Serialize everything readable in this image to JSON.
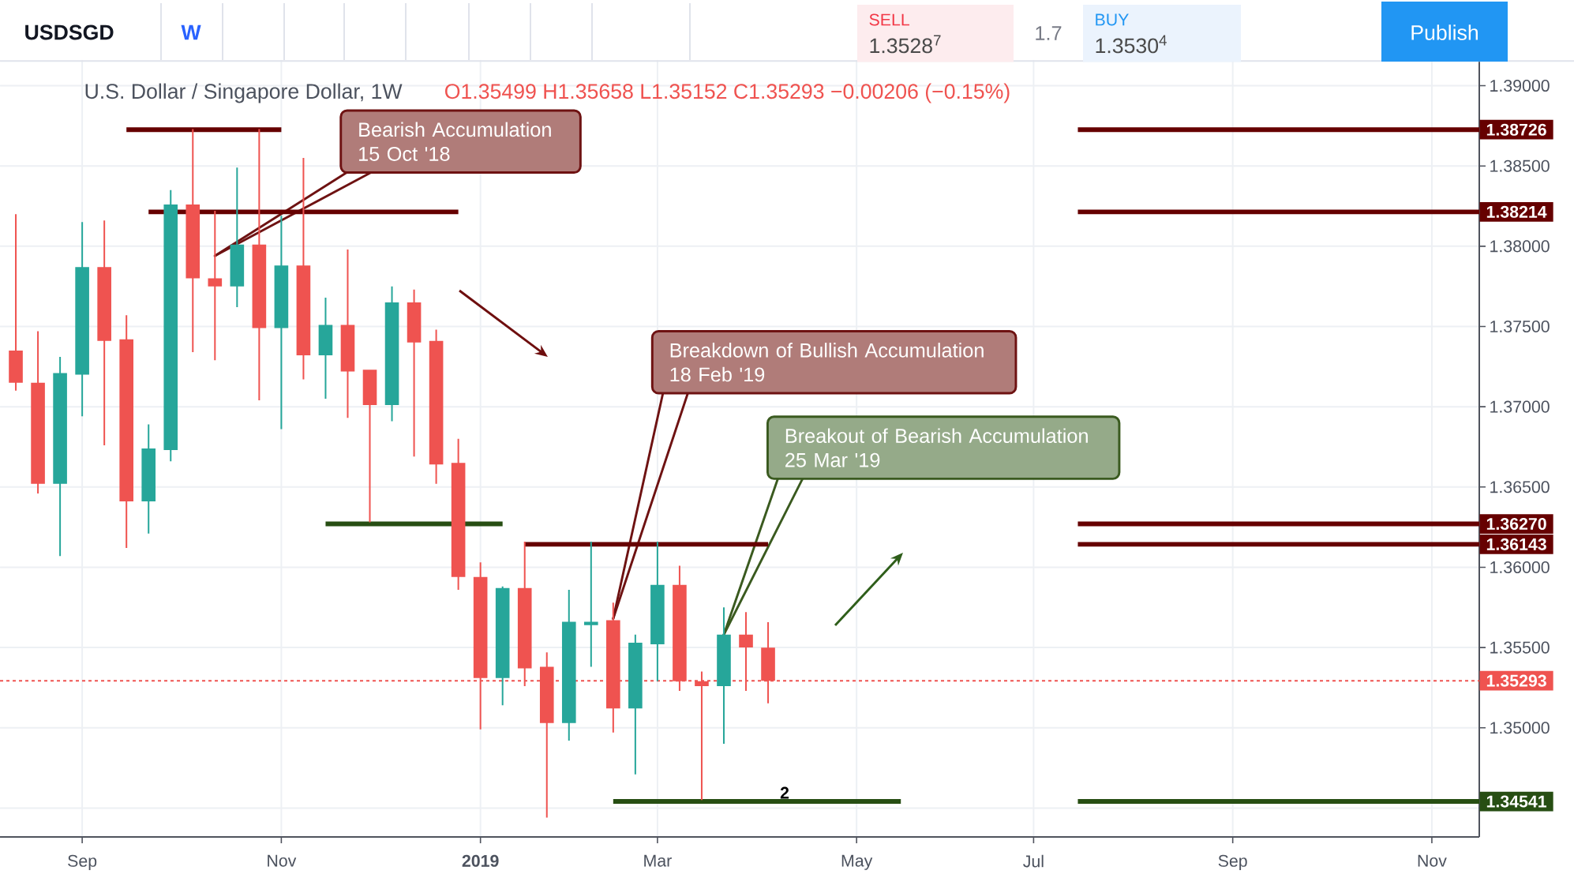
{
  "chart_data": {
    "type": "candlestick",
    "title": "U.S. Dollar / Singapore Dollar, 1W",
    "subtitle": "O1.35499 H1.35658 L1.35152 C1.35293 −0.00206 (−0.15%)",
    "x": [
      "2018-08-13",
      "2018-08-20",
      "2018-08-27",
      "2018-09-03",
      "2018-09-10",
      "2018-09-17",
      "2018-09-24",
      "2018-10-01",
      "2018-10-08",
      "2018-10-15",
      "2018-10-22",
      "2018-10-29",
      "2018-11-05",
      "2018-11-12",
      "2018-11-19",
      "2018-11-26",
      "2018-12-03",
      "2018-12-10",
      "2018-12-17",
      "2018-12-24",
      "2018-12-31",
      "2019-01-07",
      "2019-01-14",
      "2019-01-21",
      "2019-01-28",
      "2019-02-04",
      "2019-02-11",
      "2019-02-18",
      "2019-02-25",
      "2019-03-04",
      "2019-03-11",
      "2019-03-18",
      "2019-03-25",
      "2019-04-01",
      "2019-04-08"
    ],
    "ohlc": [
      [
        1.3735,
        1.382,
        1.371,
        1.3715
      ],
      [
        1.3715,
        1.3747,
        1.3646,
        1.3652
      ],
      [
        1.3652,
        1.3731,
        1.3607,
        1.3721
      ],
      [
        1.372,
        1.3815,
        1.3694,
        1.3787
      ],
      [
        1.3787,
        1.3816,
        1.3676,
        1.3741
      ],
      [
        1.3742,
        1.3757,
        1.3612,
        1.3641
      ],
      [
        1.3641,
        1.3689,
        1.3621,
        1.3674
      ],
      [
        1.3673,
        1.3835,
        1.3666,
        1.3826
      ],
      [
        1.3826,
        1.3873,
        1.3734,
        1.378
      ],
      [
        1.378,
        1.3822,
        1.3729,
        1.3775
      ],
      [
        1.3775,
        1.3849,
        1.3762,
        1.3801
      ],
      [
        1.3801,
        1.3873,
        1.3704,
        1.3749
      ],
      [
        1.3749,
        1.3819,
        1.3686,
        1.3788
      ],
      [
        1.3788,
        1.3855,
        1.3717,
        1.3732
      ],
      [
        1.3732,
        1.3768,
        1.3705,
        1.3751
      ],
      [
        1.3751,
        1.3798,
        1.3693,
        1.3722
      ],
      [
        1.3723,
        1.3723,
        1.3628,
        1.3701
      ],
      [
        1.3701,
        1.3775,
        1.3691,
        1.3765
      ],
      [
        1.3765,
        1.3773,
        1.3669,
        1.374
      ],
      [
        1.3741,
        1.3748,
        1.3652,
        1.3664
      ],
      [
        1.3665,
        1.368,
        1.3586,
        1.3594
      ],
      [
        1.3594,
        1.3603,
        1.3499,
        1.3531
      ],
      [
        1.3531,
        1.3588,
        1.3514,
        1.3587
      ],
      [
        1.3587,
        1.3616,
        1.3526,
        1.3537
      ],
      [
        1.3538,
        1.3547,
        1.3444,
        1.3503
      ],
      [
        1.3503,
        1.3586,
        1.3492,
        1.3566
      ],
      [
        1.3564,
        1.3616,
        1.3538,
        1.3566
      ],
      [
        1.3567,
        1.3578,
        1.3497,
        1.3512
      ],
      [
        1.3512,
        1.3558,
        1.3471,
        1.3553
      ],
      [
        1.3552,
        1.3616,
        1.3529,
        1.3589
      ],
      [
        1.3589,
        1.3601,
        1.3523,
        1.3529
      ],
      [
        1.3529,
        1.3535,
        1.3455,
        1.3526
      ],
      [
        1.3526,
        1.3575,
        1.349,
        1.3558
      ],
      [
        1.3558,
        1.3572,
        1.3523,
        1.355
      ],
      [
        1.35499,
        1.35658,
        1.35152,
        1.35293
      ]
    ],
    "colors": [
      "#ef5350",
      "#ef5350",
      "#26a69a",
      "#26a69a",
      "#ef5350",
      "#ef5350",
      "#26a69a",
      "#26a69a",
      "#ef5350",
      "#ef5350",
      "#26a69a",
      "#ef5350",
      "#26a69a",
      "#ef5350",
      "#26a69a",
      "#ef5350",
      "#ef5350",
      "#26a69a",
      "#ef5350",
      "#ef5350",
      "#ef5350",
      "#ef5350",
      "#26a69a",
      "#ef5350",
      "#ef5350",
      "#26a69a",
      "#26a69a",
      "#ef5350",
      "#26a69a",
      "#26a69a",
      "#ef5350",
      "#ef5350",
      "#26a69a",
      "#ef5350",
      "#ef5350"
    ],
    "series": [
      {
        "type": "line",
        "color": "#660000",
        "x": [
          "2018-09-17",
          "2018-11-05"
        ],
        "values": [
          1.38726,
          1.38726
        ]
      },
      {
        "type": "line",
        "color": "#660000",
        "x": [
          "2018-09-24",
          "2018-12-31"
        ],
        "values": [
          1.38214,
          1.38214
        ]
      },
      {
        "type": "line",
        "color": "#274e13",
        "x": [
          "2018-11-19",
          "2019-01-14"
        ],
        "values": [
          1.3627,
          1.3627
        ]
      },
      {
        "type": "line",
        "color": "#660000",
        "x": [
          "2019-01-21",
          "2019-04-08"
        ],
        "values": [
          1.36143,
          1.36143
        ]
      },
      {
        "type": "line",
        "color": "#274e13",
        "x": [
          "2019-02-18",
          "2019-05-20"
        ],
        "values": [
          1.34541,
          1.34541
        ]
      },
      {
        "type": "line",
        "name": "1.38726",
        "color": "#660000",
        "x": [
          "2019-07-15",
          "2019-11-19"
        ],
        "values": [
          1.38726,
          1.38726
        ]
      },
      {
        "type": "line",
        "name": "1.38214",
        "color": "#660000",
        "x": [
          "2019-07-15",
          "2019-11-19"
        ],
        "values": [
          1.38214,
          1.38214
        ]
      },
      {
        "type": "line",
        "name": "1.36270",
        "color": "#660000",
        "x": [
          "2019-07-15",
          "2019-11-19"
        ],
        "values": [
          1.3627,
          1.3627
        ]
      },
      {
        "type": "line",
        "name": "1.36143",
        "color": "#660000",
        "x": [
          "2019-07-15",
          "2019-11-19"
        ],
        "values": [
          1.36143,
          1.36143
        ]
      },
      {
        "type": "line",
        "name": "1.34541",
        "color": "#274e13",
        "x": [
          "2019-07-15",
          "2019-11-19"
        ],
        "values": [
          1.34541,
          1.34541
        ]
      }
    ],
    "ref_lines": [
      {
        "axis": "y",
        "value": 1.35293,
        "label": "1.35293",
        "color": "#ef5350",
        "line_style": "dotted"
      }
    ],
    "xlim": [
      "2018-08-08",
      "2019-11-19"
    ],
    "ylim": [
      1.3432,
      1.3916
    ],
    "xticks": [
      {
        "value": "2018-09-03",
        "label": "Sep"
      },
      {
        "value": "2018-11-05",
        "label": "Nov"
      },
      {
        "value": "2019-01-07",
        "label": "2019"
      },
      {
        "value": "2019-03-04",
        "label": "Mar"
      },
      {
        "value": "2019-05-06",
        "label": "May"
      },
      {
        "value": "2019-07-01",
        "label": "Jul"
      },
      {
        "value": "2019-09-02",
        "label": "Sep"
      },
      {
        "value": "2019-11-04",
        "label": "Nov"
      }
    ],
    "yticks": [
      {
        "value": 1.345,
        "label": null
      },
      {
        "value": 1.35,
        "label": "1.35000"
      },
      {
        "value": 1.355,
        "label": "1.35500"
      },
      {
        "value": 1.36,
        "label": "1.36000"
      },
      {
        "value": 1.365,
        "label": "1.36500"
      },
      {
        "value": 1.37,
        "label": "1.37000"
      },
      {
        "value": 1.375,
        "label": "1.37500"
      },
      {
        "value": 1.38,
        "label": "1.38000"
      },
      {
        "value": 1.385,
        "label": "1.38500"
      },
      {
        "value": 1.39,
        "label": "1.39000"
      }
    ],
    "grid": true,
    "annotations": [
      {
        "text": "Bearish Accumulation 15 Oct '18",
        "x": "2018-10-15",
        "y": 1.3794
      },
      {
        "text": "Breakdown of Bullish Accumulation 18 Feb '19",
        "x": "2019-02-18",
        "y": 1.3568
      },
      {
        "text": "Breakout of Bearish Accumulation 25 Mar '19",
        "x": "2019-03-25",
        "y": 1.3558
      },
      "2",
      "USDSGD",
      "W",
      "SELL",
      "1.3528$^{7}$",
      "1.7",
      "BUY",
      "1.3530$^{4}$",
      "Publish"
    ]
  }
}
